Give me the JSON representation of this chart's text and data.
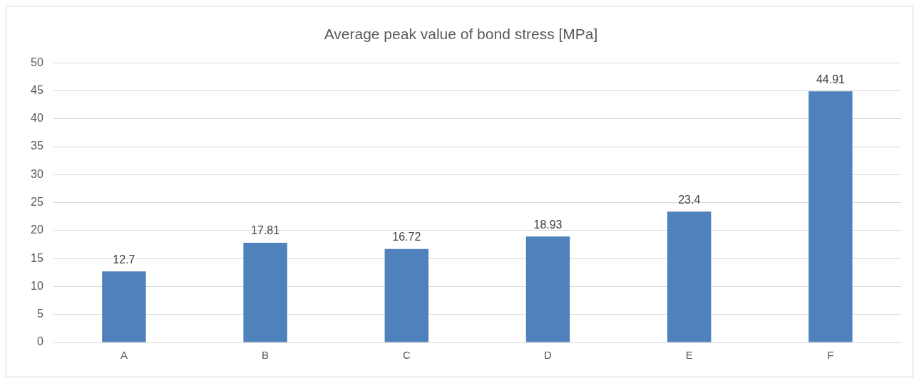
{
  "chart_data": {
    "type": "bar",
    "title": "Average peak value of bond stress [MPa]",
    "categories": [
      "A",
      "B",
      "C",
      "D",
      "E",
      "F"
    ],
    "values": [
      12.7,
      17.81,
      16.72,
      18.93,
      23.4,
      44.91
    ],
    "color": "#4f81bd",
    "ylim": [
      0,
      50
    ],
    "yticks": [
      0,
      5,
      10,
      15,
      20,
      25,
      30,
      35,
      40,
      45,
      50
    ],
    "grid": "y",
    "legend": false,
    "data_labels": true
  }
}
